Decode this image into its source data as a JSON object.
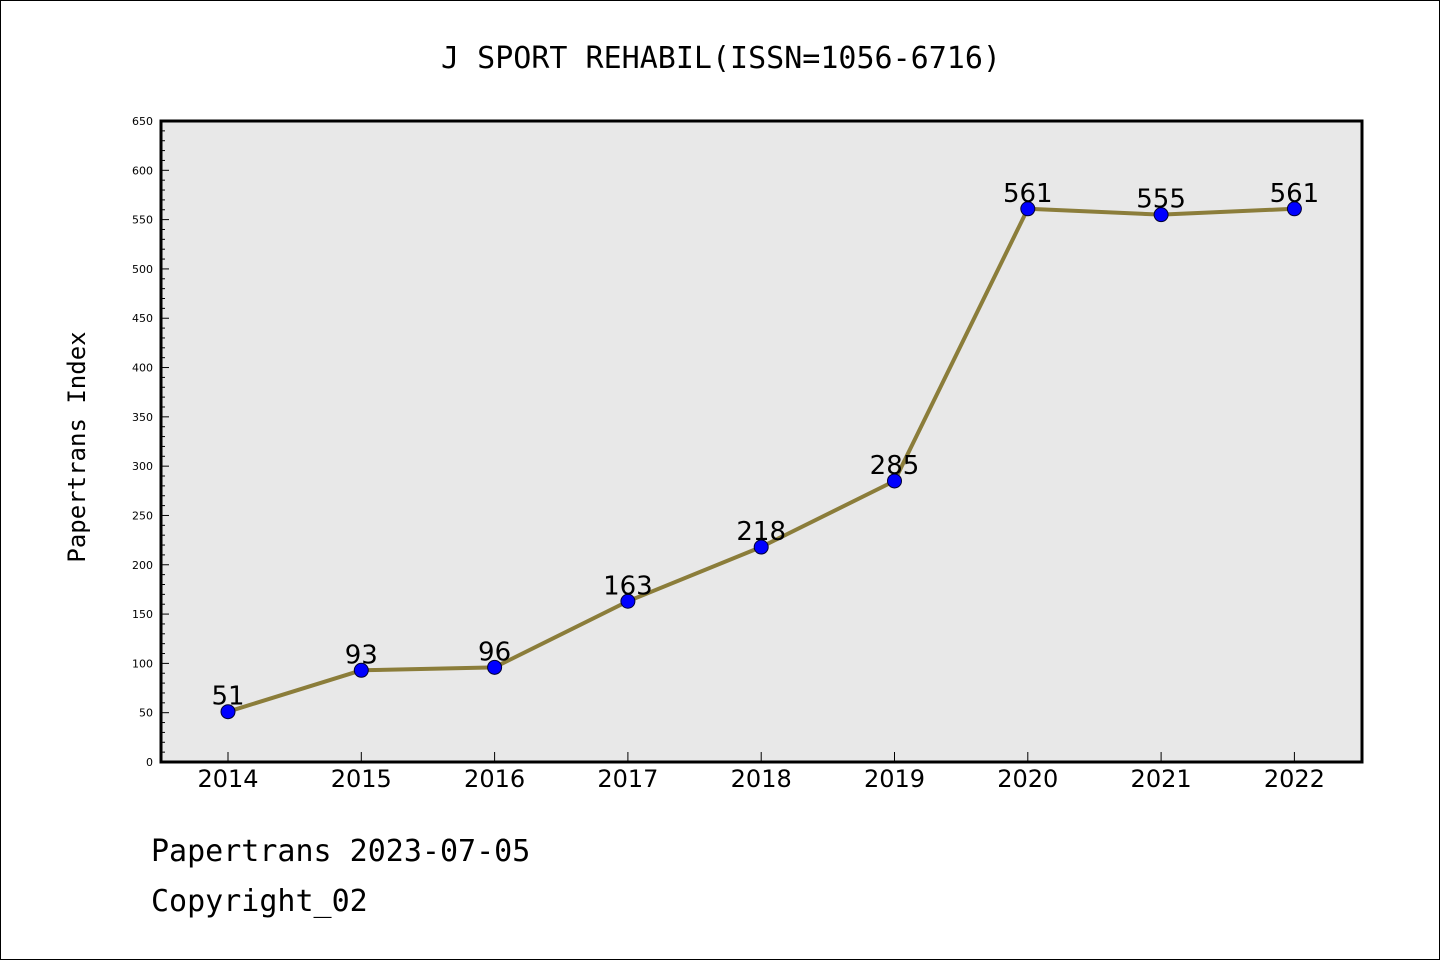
{
  "chart_data": {
    "type": "line",
    "title": "J SPORT REHABIL(ISSN=1056-6716)",
    "xlabel": "",
    "ylabel": "Papertrans Index",
    "categories": [
      "2014",
      "2015",
      "2016",
      "2017",
      "2018",
      "2019",
      "2020",
      "2021",
      "2022"
    ],
    "series": [
      {
        "values": [
          51,
          93,
          96,
          163,
          218,
          285,
          561,
          555,
          561
        ]
      }
    ],
    "ylim": [
      0,
      650
    ],
    "yticks": [
      "0",
      "50",
      "100",
      "150",
      "200",
      "250",
      "300",
      "350",
      "400",
      "450",
      "500",
      "550",
      "600",
      "650"
    ],
    "grid": false,
    "data_labels": true,
    "colors": {
      "line": "#8b7d3a",
      "marker": "#0000ff",
      "plot_background": "#e8e8e8"
    }
  },
  "footer": {
    "line1": "Papertrans 2023-07-05",
    "line2": "Copyright_02"
  }
}
